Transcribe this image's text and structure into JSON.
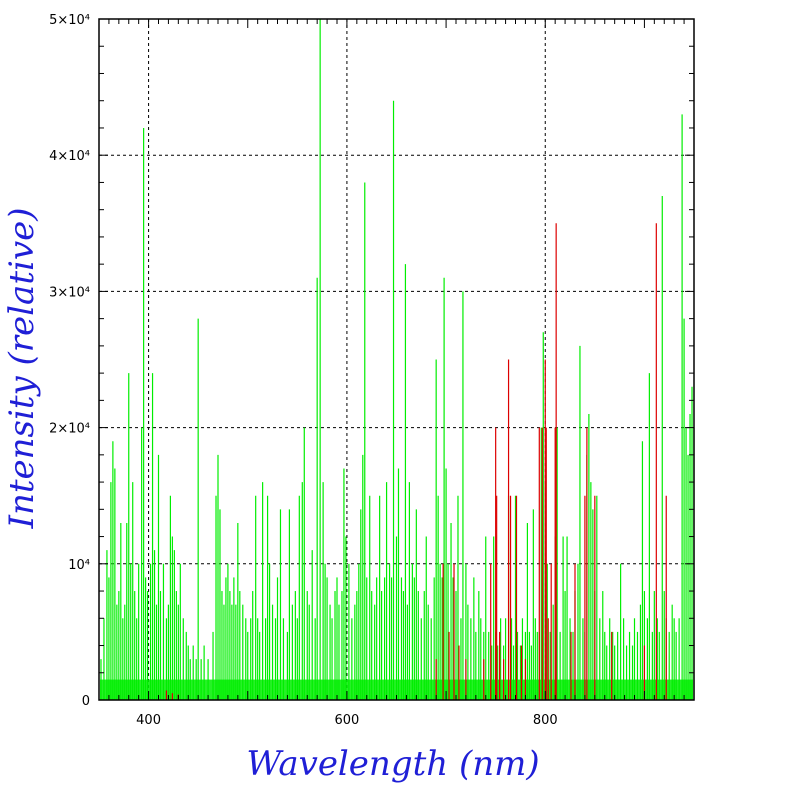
{
  "chart_data": {
    "type": "line",
    "xlabel": "Wavelength (nm)",
    "ylabel": "Intensity (relative)",
    "xlim": [
      350,
      950
    ],
    "ylim": [
      0,
      50000
    ],
    "grid": true,
    "x_ticks": [
      {
        "value": 400,
        "label": "400"
      },
      {
        "value": 600,
        "label": "600"
      },
      {
        "value": 800,
        "label": "800"
      }
    ],
    "y_ticks": [
      {
        "value": 0,
        "label": "0"
      },
      {
        "value": 10000,
        "label": "10⁴"
      },
      {
        "value": 20000,
        "label": "2×10⁴"
      },
      {
        "value": 30000,
        "label": "3×10⁴"
      },
      {
        "value": 40000,
        "label": "4×10⁴"
      },
      {
        "value": 50000,
        "label": "5×10⁴"
      }
    ],
    "series": [
      {
        "color": "#00ee00",
        "baseline": 1500,
        "lines": [
          [
            352,
            3000
          ],
          [
            355,
            6000
          ],
          [
            358,
            11000
          ],
          [
            360,
            9000
          ],
          [
            362,
            16000
          ],
          [
            364,
            19000
          ],
          [
            366,
            17000
          ],
          [
            368,
            7000
          ],
          [
            370,
            8000
          ],
          [
            372,
            13000
          ],
          [
            374,
            6000
          ],
          [
            376,
            7000
          ],
          [
            378,
            13000
          ],
          [
            380,
            24000
          ],
          [
            382,
            10000
          ],
          [
            384,
            16000
          ],
          [
            386,
            8000
          ],
          [
            388,
            6000
          ],
          [
            390,
            10000
          ],
          [
            393,
            20000
          ],
          [
            395,
            42000
          ],
          [
            397,
            9000
          ],
          [
            399,
            8000
          ],
          [
            402,
            10000
          ],
          [
            404,
            24000
          ],
          [
            406,
            11000
          ],
          [
            408,
            7000
          ],
          [
            410,
            18000
          ],
          [
            412,
            8000
          ],
          [
            415,
            10000
          ],
          [
            418,
            6000
          ],
          [
            420,
            7000
          ],
          [
            422,
            15000
          ],
          [
            424,
            12000
          ],
          [
            426,
            11000
          ],
          [
            428,
            8000
          ],
          [
            430,
            7000
          ],
          [
            432,
            10000
          ],
          [
            435,
            6000
          ],
          [
            438,
            5000
          ],
          [
            440,
            4000
          ],
          [
            442,
            3000
          ],
          [
            445,
            4000
          ],
          [
            448,
            3000
          ],
          [
            450,
            28000
          ],
          [
            453,
            3000
          ],
          [
            456,
            4000
          ],
          [
            460,
            3000
          ],
          [
            465,
            5000
          ],
          [
            468,
            15000
          ],
          [
            470,
            18000
          ],
          [
            472,
            14000
          ],
          [
            474,
            8000
          ],
          [
            476,
            7000
          ],
          [
            478,
            9000
          ],
          [
            480,
            10000
          ],
          [
            482,
            8000
          ],
          [
            484,
            7000
          ],
          [
            486,
            9000
          ],
          [
            488,
            7000
          ],
          [
            490,
            13000
          ],
          [
            492,
            8000
          ],
          [
            495,
            7000
          ],
          [
            498,
            6000
          ],
          [
            500,
            5000
          ],
          [
            503,
            6000
          ],
          [
            505,
            8000
          ],
          [
            508,
            15000
          ],
          [
            510,
            6000
          ],
          [
            512,
            5000
          ],
          [
            515,
            16000
          ],
          [
            518,
            6000
          ],
          [
            520,
            15000
          ],
          [
            522,
            10000
          ],
          [
            525,
            7000
          ],
          [
            528,
            6000
          ],
          [
            530,
            9000
          ],
          [
            533,
            14000
          ],
          [
            536,
            6000
          ],
          [
            540,
            5000
          ],
          [
            542,
            14000
          ],
          [
            545,
            7000
          ],
          [
            548,
            8000
          ],
          [
            550,
            6000
          ],
          [
            552,
            15000
          ],
          [
            555,
            16000
          ],
          [
            557,
            20000
          ],
          [
            560,
            8000
          ],
          [
            562,
            7000
          ],
          [
            565,
            11000
          ],
          [
            568,
            6000
          ],
          [
            570,
            31000
          ],
          [
            573,
            50000
          ],
          [
            576,
            16000
          ],
          [
            578,
            10000
          ],
          [
            580,
            9000
          ],
          [
            583,
            7000
          ],
          [
            585,
            6000
          ],
          [
            588,
            8000
          ],
          [
            590,
            9000
          ],
          [
            592,
            7000
          ],
          [
            595,
            8000
          ],
          [
            597,
            17000
          ],
          [
            599,
            12000
          ],
          [
            602,
            10000
          ],
          [
            605,
            6000
          ],
          [
            608,
            7000
          ],
          [
            610,
            8000
          ],
          [
            612,
            10000
          ],
          [
            614,
            14000
          ],
          [
            616,
            18000
          ],
          [
            618,
            38000
          ],
          [
            620,
            9000
          ],
          [
            623,
            15000
          ],
          [
            625,
            8000
          ],
          [
            628,
            7000
          ],
          [
            630,
            9000
          ],
          [
            633,
            15000
          ],
          [
            635,
            8000
          ],
          [
            638,
            9000
          ],
          [
            640,
            16000
          ],
          [
            643,
            10000
          ],
          [
            645,
            9000
          ],
          [
            647,
            44000
          ],
          [
            650,
            12000
          ],
          [
            652,
            17000
          ],
          [
            655,
            9000
          ],
          [
            657,
            8000
          ],
          [
            659,
            32000
          ],
          [
            661,
            7000
          ],
          [
            663,
            16000
          ],
          [
            666,
            10000
          ],
          [
            668,
            9000
          ],
          [
            670,
            14000
          ],
          [
            672,
            8000
          ],
          [
            675,
            6000
          ],
          [
            678,
            8000
          ],
          [
            680,
            12000
          ],
          [
            682,
            7000
          ],
          [
            685,
            6000
          ],
          [
            688,
            9000
          ],
          [
            690,
            25000
          ],
          [
            692,
            15000
          ],
          [
            694,
            10000
          ],
          [
            696,
            9000
          ],
          [
            698,
            31000
          ],
          [
            700,
            17000
          ],
          [
            702,
            10000
          ],
          [
            705,
            13000
          ],
          [
            707,
            9000
          ],
          [
            710,
            8000
          ],
          [
            712,
            15000
          ],
          [
            715,
            6000
          ],
          [
            717,
            30000
          ],
          [
            720,
            10000
          ],
          [
            722,
            7000
          ],
          [
            725,
            6000
          ],
          [
            728,
            9000
          ],
          [
            730,
            5000
          ],
          [
            733,
            8000
          ],
          [
            735,
            6000
          ],
          [
            738,
            5000
          ],
          [
            740,
            12000
          ],
          [
            743,
            5000
          ],
          [
            746,
            4000
          ],
          [
            748,
            12000
          ],
          [
            750,
            5000
          ],
          [
            752,
            4000
          ],
          [
            755,
            6000
          ],
          [
            758,
            4000
          ],
          [
            760,
            6000
          ],
          [
            763,
            15000
          ],
          [
            766,
            6000
          ],
          [
            768,
            4000
          ],
          [
            770,
            15000
          ],
          [
            772,
            5000
          ],
          [
            775,
            4000
          ],
          [
            777,
            6000
          ],
          [
            780,
            5000
          ],
          [
            782,
            13000
          ],
          [
            784,
            5000
          ],
          [
            786,
            4000
          ],
          [
            788,
            14000
          ],
          [
            790,
            6000
          ],
          [
            792,
            5000
          ],
          [
            794,
            5000
          ],
          [
            796,
            20000
          ],
          [
            798,
            27000
          ],
          [
            800,
            16000
          ],
          [
            802,
            10000
          ],
          [
            805,
            5000
          ],
          [
            808,
            7000
          ],
          [
            810,
            12000
          ],
          [
            812,
            20000
          ],
          [
            815,
            5000
          ],
          [
            818,
            12000
          ],
          [
            820,
            8000
          ],
          [
            822,
            12000
          ],
          [
            825,
            6000
          ],
          [
            828,
            5000
          ],
          [
            830,
            8000
          ],
          [
            833,
            10000
          ],
          [
            835,
            26000
          ],
          [
            838,
            6000
          ],
          [
            840,
            5000
          ],
          [
            842,
            18000
          ],
          [
            844,
            21000
          ],
          [
            846,
            16000
          ],
          [
            848,
            14000
          ],
          [
            850,
            8000
          ],
          [
            852,
            15000
          ],
          [
            855,
            6000
          ],
          [
            858,
            8000
          ],
          [
            860,
            5000
          ],
          [
            862,
            4000
          ],
          [
            865,
            6000
          ],
          [
            868,
            5000
          ],
          [
            870,
            4000
          ],
          [
            873,
            5000
          ],
          [
            876,
            10000
          ],
          [
            879,
            6000
          ],
          [
            882,
            4000
          ],
          [
            885,
            5000
          ],
          [
            888,
            4000
          ],
          [
            890,
            6000
          ],
          [
            893,
            5000
          ],
          [
            896,
            7000
          ],
          [
            898,
            19000
          ],
          [
            900,
            8000
          ],
          [
            903,
            6000
          ],
          [
            905,
            24000
          ],
          [
            908,
            5000
          ],
          [
            910,
            8000
          ],
          [
            913,
            6000
          ],
          [
            915,
            5000
          ],
          [
            918,
            37000
          ],
          [
            920,
            8000
          ],
          [
            922,
            6000
          ],
          [
            925,
            5000
          ],
          [
            928,
            7000
          ],
          [
            930,
            6000
          ],
          [
            932,
            5000
          ],
          [
            935,
            6000
          ],
          [
            938,
            43000
          ],
          [
            940,
            28000
          ],
          [
            942,
            20000
          ],
          [
            944,
            18000
          ],
          [
            946,
            21000
          ],
          [
            948,
            23000
          ],
          [
            950,
            20000
          ]
        ]
      },
      {
        "color": "#dd0000",
        "lines": [
          [
            418,
            700
          ],
          [
            424,
            500
          ],
          [
            430,
            400
          ],
          [
            690,
            3000
          ],
          [
            697,
            10000
          ],
          [
            703,
            5000
          ],
          [
            708,
            10000
          ],
          [
            713,
            4000
          ],
          [
            720,
            3000
          ],
          [
            738,
            3000
          ],
          [
            745,
            10000
          ],
          [
            750,
            20000
          ],
          [
            751,
            15000
          ],
          [
            754,
            5000
          ],
          [
            758,
            3000
          ],
          [
            763,
            25000
          ],
          [
            765,
            15000
          ],
          [
            771,
            15000
          ],
          [
            776,
            4000
          ],
          [
            780,
            3000
          ],
          [
            794,
            20000
          ],
          [
            797,
            20000
          ],
          [
            800,
            25000
          ],
          [
            801,
            20000
          ],
          [
            803,
            6000
          ],
          [
            806,
            10000
          ],
          [
            810,
            20000
          ],
          [
            811,
            35000
          ],
          [
            826,
            5000
          ],
          [
            830,
            10000
          ],
          [
            840,
            15000
          ],
          [
            842,
            20000
          ],
          [
            850,
            15000
          ],
          [
            867,
            5000
          ],
          [
            900,
            4000
          ],
          [
            912,
            35000
          ],
          [
            922,
            15000
          ]
        ]
      }
    ]
  }
}
